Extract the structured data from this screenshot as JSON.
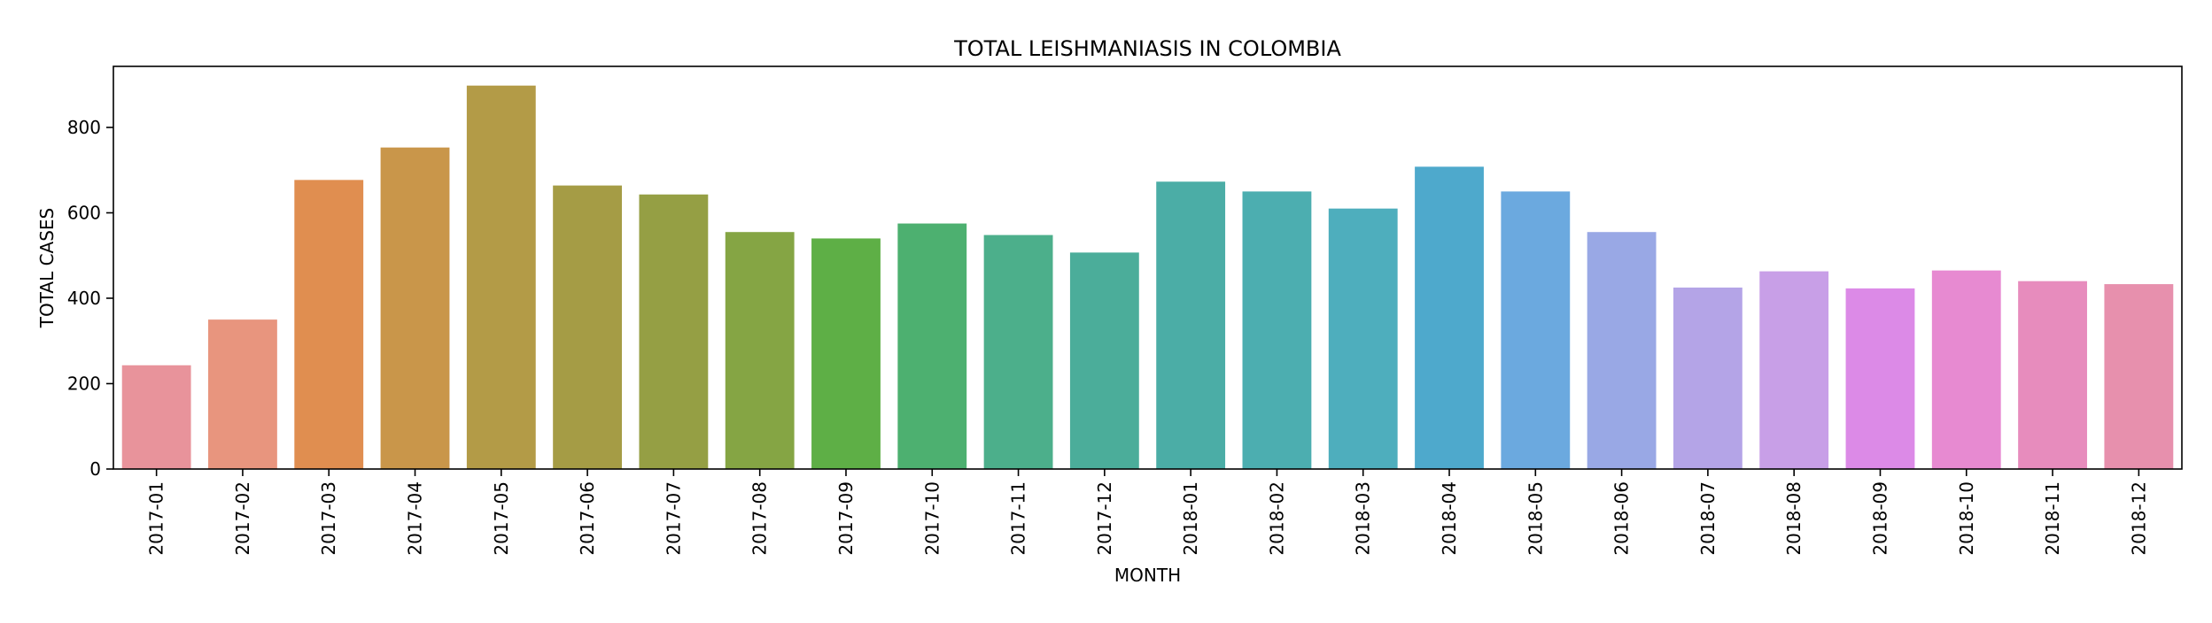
{
  "chart_data": {
    "type": "bar",
    "title": "TOTAL LEISHMANIASIS IN COLOMBIA",
    "xlabel": "MONTH",
    "ylabel": "TOTAL CASES",
    "categories": [
      "2017-01",
      "2017-02",
      "2017-03",
      "2017-04",
      "2017-05",
      "2017-06",
      "2017-07",
      "2017-08",
      "2017-09",
      "2017-10",
      "2017-11",
      "2017-12",
      "2018-01",
      "2018-02",
      "2018-03",
      "2018-04",
      "2018-05",
      "2018-06",
      "2018-07",
      "2018-08",
      "2018-09",
      "2018-10",
      "2018-11",
      "2018-12"
    ],
    "values": [
      243,
      350,
      677,
      753,
      898,
      664,
      643,
      555,
      540,
      575,
      548,
      507,
      673,
      650,
      610,
      708,
      650,
      555,
      425,
      463,
      423,
      465,
      440,
      433
    ],
    "colors": [
      "#e8939b",
      "#e8957e",
      "#e08e50",
      "#c9964a",
      "#b39b47",
      "#a59c45",
      "#959f44",
      "#85a544",
      "#5eaf46",
      "#4db070",
      "#4caf8b",
      "#4bad9a",
      "#4bada6",
      "#4caeb0",
      "#4eaebd",
      "#4ea9cc",
      "#6ba9df",
      "#99a8e5",
      "#b4a4e7",
      "#c89fe7",
      "#dc8ae7",
      "#e78ad1",
      "#e78cbd",
      "#e790ad"
    ],
    "yticks": [
      0,
      200,
      400,
      600,
      800
    ],
    "ylim": [
      0,
      943
    ],
    "grid": false,
    "legend": "none"
  }
}
